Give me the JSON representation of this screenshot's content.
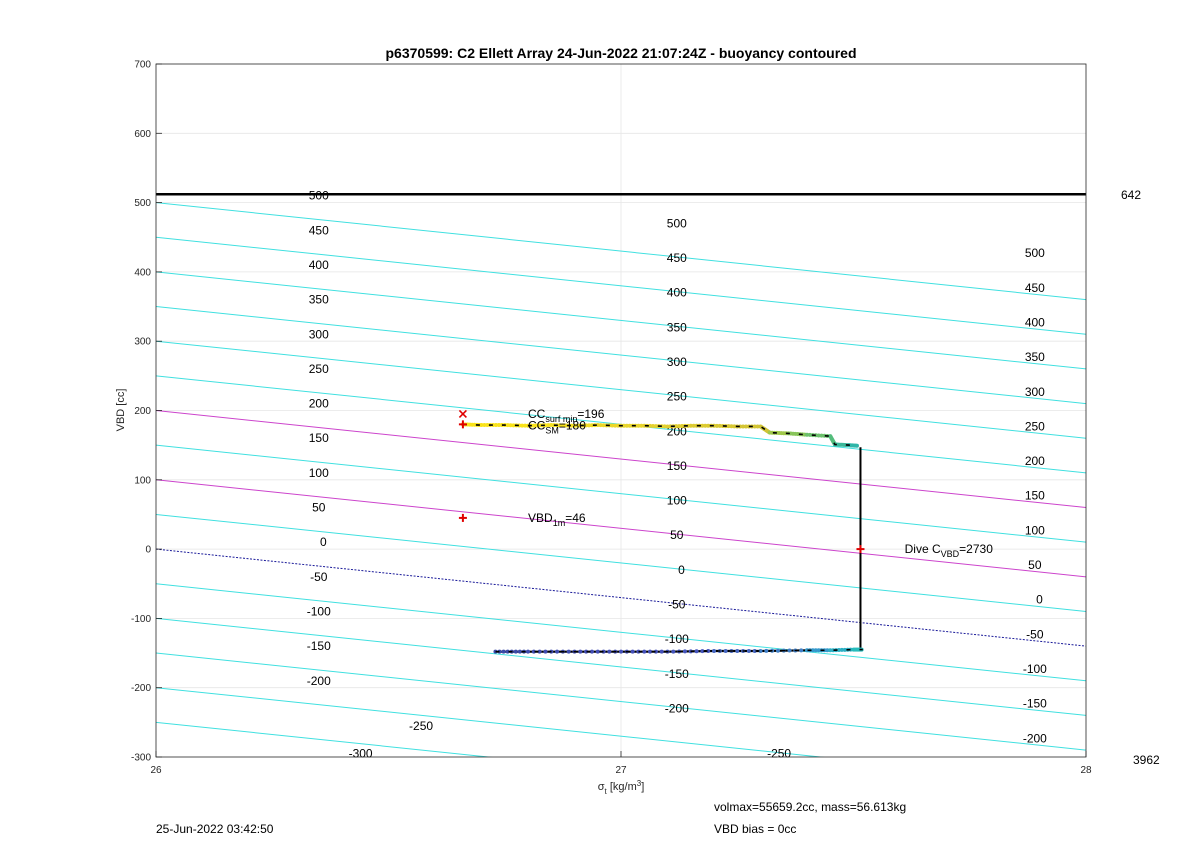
{
  "chart_data": {
    "type": "line",
    "title": "p6370599: C2 Ellett Array 24-Jun-2022 21:07:24Z - buoyancy contoured",
    "xlabel_sym": "σ",
    "xlabel_sub": "t",
    "xlabel_unit": " [kg/m",
    "xlabel_sup": "3",
    "xlabel_close": "]",
    "ylabel": "VBD [cc]",
    "xlim": [
      26,
      28
    ],
    "ylim": [
      -300,
      700
    ],
    "xticks": [
      26,
      27,
      28
    ],
    "yticks": [
      -300,
      -200,
      -100,
      0,
      100,
      200,
      300,
      400,
      500,
      600,
      700
    ],
    "grid": true,
    "contour_slope": -70,
    "contours": [
      {
        "value": 500,
        "color": "#40e0e0"
      },
      {
        "value": 450,
        "color": "#40e0e0"
      },
      {
        "value": 400,
        "color": "#40e0e0"
      },
      {
        "value": 350,
        "color": "#40e0e0"
      },
      {
        "value": 300,
        "color": "#40e0e0"
      },
      {
        "value": 250,
        "color": "#40e0e0"
      },
      {
        "value": 200,
        "color": "#cc44cc"
      },
      {
        "value": 150,
        "color": "#40e0e0"
      },
      {
        "value": 100,
        "color": "#cc44cc"
      },
      {
        "value": 50,
        "color": "#40e0e0"
      },
      {
        "value": 0,
        "color": "#1a1a99",
        "dashed": true
      },
      {
        "value": -50,
        "color": "#40e0e0"
      },
      {
        "value": -100,
        "color": "#40e0e0"
      },
      {
        "value": -150,
        "color": "#40e0e0"
      },
      {
        "value": -200,
        "color": "#40e0e0"
      },
      {
        "value": -250,
        "color": "#40e0e0"
      },
      {
        "value": -300,
        "color": "#40e0e0"
      }
    ],
    "contour_labels_left": [
      {
        "text": "500",
        "x": 26.35,
        "y": 510
      },
      {
        "text": "450",
        "x": 26.35,
        "y": 460
      },
      {
        "text": "400",
        "x": 26.35,
        "y": 410
      },
      {
        "text": "350",
        "x": 26.35,
        "y": 360
      },
      {
        "text": "300",
        "x": 26.35,
        "y": 310
      },
      {
        "text": "250",
        "x": 26.35,
        "y": 260
      },
      {
        "text": "200",
        "x": 26.35,
        "y": 210
      },
      {
        "text": "150",
        "x": 26.35,
        "y": 160
      },
      {
        "text": "100",
        "x": 26.35,
        "y": 110
      },
      {
        "text": "50",
        "x": 26.35,
        "y": 60
      },
      {
        "text": "0",
        "x": 26.36,
        "y": 10
      },
      {
        "text": "-50",
        "x": 26.35,
        "y": -40
      },
      {
        "text": "-100",
        "x": 26.35,
        "y": -90
      },
      {
        "text": "-150",
        "x": 26.35,
        "y": -140
      },
      {
        "text": "-200",
        "x": 26.35,
        "y": -190
      },
      {
        "text": "-250",
        "x": 26.57,
        "y": -255
      },
      {
        "text": "-300",
        "x": 26.44,
        "y": -295
      }
    ],
    "contour_labels_mid": [
      {
        "text": "500",
        "x": 27.12,
        "y": 470
      },
      {
        "text": "450",
        "x": 27.12,
        "y": 420
      },
      {
        "text": "400",
        "x": 27.12,
        "y": 370
      },
      {
        "text": "350",
        "x": 27.12,
        "y": 320
      },
      {
        "text": "300",
        "x": 27.12,
        "y": 270
      },
      {
        "text": "250",
        "x": 27.12,
        "y": 220
      },
      {
        "text": "200",
        "x": 27.12,
        "y": 170
      },
      {
        "text": "150",
        "x": 27.12,
        "y": 120
      },
      {
        "text": "100",
        "x": 27.12,
        "y": 70
      },
      {
        "text": "50",
        "x": 27.12,
        "y": 20
      },
      {
        "text": "0",
        "x": 27.13,
        "y": -30
      },
      {
        "text": "-50",
        "x": 27.12,
        "y": -80
      },
      {
        "text": "-100",
        "x": 27.12,
        "y": -130
      },
      {
        "text": "-150",
        "x": 27.12,
        "y": -180
      },
      {
        "text": "-200",
        "x": 27.12,
        "y": -230
      },
      {
        "text": "-250",
        "x": 27.34,
        "y": -295
      }
    ],
    "contour_labels_right": [
      {
        "text": "500",
        "x": 27.89,
        "y": 427
      },
      {
        "text": "450",
        "x": 27.89,
        "y": 377
      },
      {
        "text": "400",
        "x": 27.89,
        "y": 327
      },
      {
        "text": "350",
        "x": 27.89,
        "y": 277
      },
      {
        "text": "300",
        "x": 27.89,
        "y": 227
      },
      {
        "text": "250",
        "x": 27.89,
        "y": 177
      },
      {
        "text": "200",
        "x": 27.89,
        "y": 127
      },
      {
        "text": "150",
        "x": 27.89,
        "y": 77
      },
      {
        "text": "100",
        "x": 27.89,
        "y": 27
      },
      {
        "text": "50",
        "x": 27.89,
        "y": -23
      },
      {
        "text": "0",
        "x": 27.9,
        "y": -73
      },
      {
        "text": "-50",
        "x": 27.89,
        "y": -123
      },
      {
        "text": "-100",
        "x": 27.89,
        "y": -173
      },
      {
        "text": "-150",
        "x": 27.89,
        "y": -223
      },
      {
        "text": "-200",
        "x": 27.89,
        "y": -273
      }
    ],
    "vbd_max_line": {
      "y": 512,
      "label": "642"
    },
    "right_bottom_label": "3962",
    "upper_trace": [
      [
        26.66,
        180
      ],
      [
        26.7,
        179
      ],
      [
        26.75,
        179
      ],
      [
        26.8,
        178
      ],
      [
        26.85,
        179
      ],
      [
        26.9,
        178
      ],
      [
        26.95,
        179
      ],
      [
        27.0,
        178
      ],
      [
        27.05,
        178
      ],
      [
        27.1,
        177
      ],
      [
        27.15,
        178
      ],
      [
        27.2,
        178
      ],
      [
        27.25,
        177
      ],
      [
        27.3,
        177
      ],
      [
        27.32,
        168
      ],
      [
        27.36,
        167
      ],
      [
        27.4,
        165
      ],
      [
        27.45,
        163
      ],
      [
        27.46,
        151
      ],
      [
        27.49,
        150
      ],
      [
        27.51,
        149
      ]
    ],
    "upper_trace_colors": [
      "#f9e31a",
      "#f9e31a",
      "#f9e31a",
      "#f9e31a",
      "#f5e020",
      "#f0dc25",
      "#ecd72a",
      "#e8d52c",
      "#e4d12f",
      "#e0ce30",
      "#dccb31",
      "#d8c832",
      "#d4c534",
      "#cfc336",
      "#a0c84a",
      "#88c45a",
      "#6cc06c",
      "#54bd7c",
      "#3cb89a",
      "#2fb6a8",
      "#2ab5b2"
    ],
    "lower_trace": [
      [
        26.73,
        -148
      ],
      [
        26.8,
        -148
      ],
      [
        26.9,
        -148
      ],
      [
        27.0,
        -148
      ],
      [
        27.1,
        -148
      ],
      [
        27.2,
        -147
      ],
      [
        27.3,
        -147
      ],
      [
        27.4,
        -146
      ],
      [
        27.45,
        -146
      ],
      [
        27.5,
        -145
      ],
      [
        27.52,
        -145
      ]
    ],
    "lower_trace_colors": [
      "#3b4aa8",
      "#3f4cb0",
      "#424db5",
      "#4450ba",
      "#4555bd",
      "#4566c2",
      "#3f7fc8",
      "#3599cc",
      "#2cb0c4",
      "#27bcbc",
      "#27bcbc"
    ],
    "vertical_line": {
      "x": 27.515,
      "y_from": 147,
      "y_to": -145
    },
    "markers": [
      {
        "name": "surf-min-marker",
        "x": 26.66,
        "y": 195,
        "symbol": "x"
      },
      {
        "name": "sm-marker",
        "x": 26.66,
        "y": 180,
        "symbol": "+"
      },
      {
        "name": "vbd-1m-marker",
        "x": 26.66,
        "y": 45,
        "symbol": "+"
      },
      {
        "name": "dive-c-marker",
        "x": 27.515,
        "y": 0,
        "symbol": "+"
      }
    ],
    "annotations": {
      "cc_surf_min": {
        "base": "CC",
        "sub": "surf min",
        "tail": "=196",
        "x": 26.8,
        "y": 195
      },
      "cc_sm": {
        "base": "CC",
        "sub": "SM",
        "tail": "=180",
        "x": 26.8,
        "y": 178
      },
      "vbd_1m": {
        "base": "VBD",
        "sub": "1m",
        "tail": "=46",
        "x": 26.8,
        "y": 45
      },
      "dive_c": {
        "base": "Dive C",
        "sub": "VBD",
        "tail": "=2730",
        "x": 27.61,
        "y": 0
      }
    }
  },
  "footer": {
    "timestamp": "25-Jun-2022 03:42:50",
    "volmax_mass": "volmax=55659.2cc, mass=56.613kg",
    "vbd_bias": "VBD bias = 0cc"
  }
}
